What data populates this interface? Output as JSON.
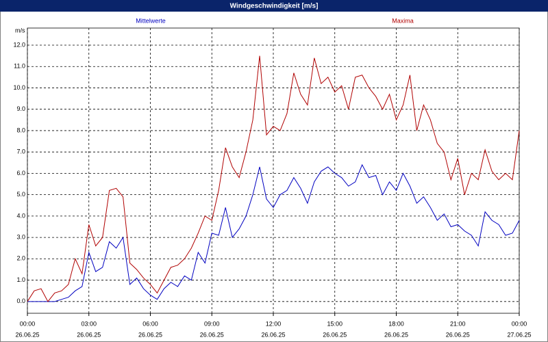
{
  "chart_data": {
    "type": "line",
    "title": "Windgeschwindigkeit [m/s]",
    "y_label": "m/s",
    "x": [
      0,
      20,
      40,
      60,
      80,
      100,
      120,
      140,
      160,
      180,
      200,
      220,
      240,
      260,
      280,
      300,
      320,
      340,
      360,
      380,
      400,
      420,
      440,
      460,
      480,
      500,
      520,
      540,
      560,
      580,
      600,
      620,
      640,
      660,
      680,
      700,
      720,
      740,
      760,
      780,
      800,
      820,
      840,
      860,
      880,
      900,
      920,
      940,
      960,
      980,
      1000,
      1020,
      1040,
      1060,
      1080,
      1100,
      1120,
      1140,
      1160,
      1180,
      1200,
      1220,
      1240,
      1260,
      1280,
      1300,
      1320,
      1340,
      1360,
      1380,
      1400,
      1420,
      1440
    ],
    "series": [
      {
        "name": "Mittelwerte",
        "color": "#0000c0",
        "values": [
          0,
          0,
          0,
          0,
          0,
          0.1,
          0.2,
          0.5,
          0.7,
          2.3,
          1.4,
          1.6,
          2.8,
          2.5,
          3.0,
          0.8,
          1.1,
          0.6,
          0.3,
          0.1,
          0.6,
          0.9,
          0.7,
          1.2,
          1.0,
          2.3,
          1.8,
          3.2,
          3.1,
          4.4,
          3.0,
          3.4,
          4.0,
          5.0,
          6.3,
          4.8,
          4.4,
          5.0,
          5.2,
          5.8,
          5.3,
          4.6,
          5.6,
          6.1,
          6.3,
          6.0,
          5.8,
          5.4,
          5.6,
          6.4,
          5.8,
          5.9,
          5.0,
          5.6,
          5.2,
          6.0,
          5.4,
          4.6,
          4.9,
          4.4,
          3.8,
          4.1,
          3.5,
          3.6,
          3.3,
          3.1,
          2.6,
          4.2,
          3.8,
          3.6,
          3.1,
          3.2,
          3.8
        ]
      },
      {
        "name": "Maxima",
        "color": "#b00000",
        "values": [
          0,
          0.5,
          0.6,
          0,
          0.4,
          0.5,
          0.8,
          2.0,
          1.3,
          3.6,
          2.6,
          3.0,
          5.2,
          5.3,
          4.9,
          1.8,
          1.5,
          1.1,
          0.8,
          0.4,
          1.0,
          1.6,
          1.7,
          2.0,
          2.5,
          3.2,
          4.0,
          3.8,
          5.2,
          7.2,
          6.3,
          5.8,
          7.0,
          8.5,
          11.5,
          7.8,
          8.2,
          8.0,
          8.8,
          10.7,
          9.7,
          9.2,
          11.4,
          10.2,
          10.5,
          9.8,
          10.1,
          9.0,
          10.5,
          10.6,
          10.0,
          9.6,
          9.0,
          9.7,
          8.5,
          9.2,
          10.6,
          8.0,
          9.2,
          8.5,
          7.4,
          7.0,
          5.7,
          6.7,
          5.0,
          6.0,
          5.7,
          7.1,
          6.1,
          5.7,
          6.0,
          5.7,
          8.0
        ]
      }
    ],
    "xlim": [
      0,
      1440
    ],
    "xticks": [
      {
        "value": 0,
        "label": "00:00"
      },
      {
        "value": 180,
        "label": "03:00"
      },
      {
        "value": 360,
        "label": "06:00"
      },
      {
        "value": 540,
        "label": "09:00"
      },
      {
        "value": 720,
        "label": "12:00"
      },
      {
        "value": 900,
        "label": "15:00"
      },
      {
        "value": 1080,
        "label": "18:00"
      },
      {
        "value": 1260,
        "label": "21:00"
      },
      {
        "value": 1440,
        "label": "00:00"
      }
    ],
    "xtick_dates": [
      "26.06.25",
      "26.06.25",
      "26.06.25",
      "26.06.25",
      "26.06.25",
      "26.06.25",
      "26.06.25",
      "26.06.25",
      "27.06.25"
    ],
    "ylim": [
      -0.55,
      12.8
    ],
    "yticks": [
      {
        "value": 0,
        "label": "0.0"
      },
      {
        "value": 1,
        "label": "1.0"
      },
      {
        "value": 2,
        "label": "2.0"
      },
      {
        "value": 3,
        "label": "3.0"
      },
      {
        "value": 4,
        "label": "4.0"
      },
      {
        "value": 5,
        "label": "5.0"
      },
      {
        "value": 6,
        "label": "6.0"
      },
      {
        "value": 7,
        "label": "7.0"
      },
      {
        "value": 8,
        "label": "8.0"
      },
      {
        "value": 9,
        "label": "9.0"
      },
      {
        "value": 10,
        "label": "10.0"
      },
      {
        "value": 11,
        "label": "11.0"
      },
      {
        "value": 12,
        "label": "12.0"
      }
    ],
    "grid": true
  }
}
